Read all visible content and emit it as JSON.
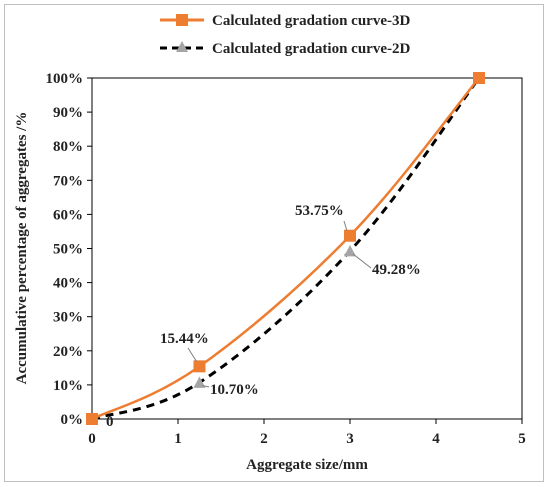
{
  "chart_data": {
    "type": "line",
    "title": "",
    "xlabel": "Aggregate size/mm",
    "ylabel": "Accumulative percentage of aggregates /%",
    "xlim": [
      0,
      5
    ],
    "ylim": [
      0,
      100
    ],
    "x_ticks": [
      "0",
      "1",
      "2",
      "3",
      "4",
      "5"
    ],
    "y_ticks": [
      "0%",
      "10%",
      "20%",
      "30%",
      "40%",
      "50%",
      "60%",
      "70%",
      "80%",
      "90%",
      "100%"
    ],
    "grid": false,
    "legend_position": "top",
    "series": [
      {
        "name": "Calculated gradation curve-3D",
        "color": "#ED7D31",
        "line_style": "solid",
        "marker": "square",
        "x": [
          0,
          1.25,
          3,
          4.5
        ],
        "y": [
          0,
          15.44,
          53.75,
          100
        ],
        "point_labels": [
          "",
          "15.44%",
          "53.75%",
          ""
        ]
      },
      {
        "name": "Calculated gradation curve-2D",
        "color": "#000000",
        "marker_color": "#A5A5A5",
        "line_style": "dashed",
        "marker": "triangle",
        "x": [
          0,
          1.25,
          3,
          4.5
        ],
        "y": [
          0,
          10.7,
          49.28,
          100
        ],
        "point_labels": [
          "0",
          "10.70%",
          "49.28%",
          ""
        ]
      }
    ]
  }
}
